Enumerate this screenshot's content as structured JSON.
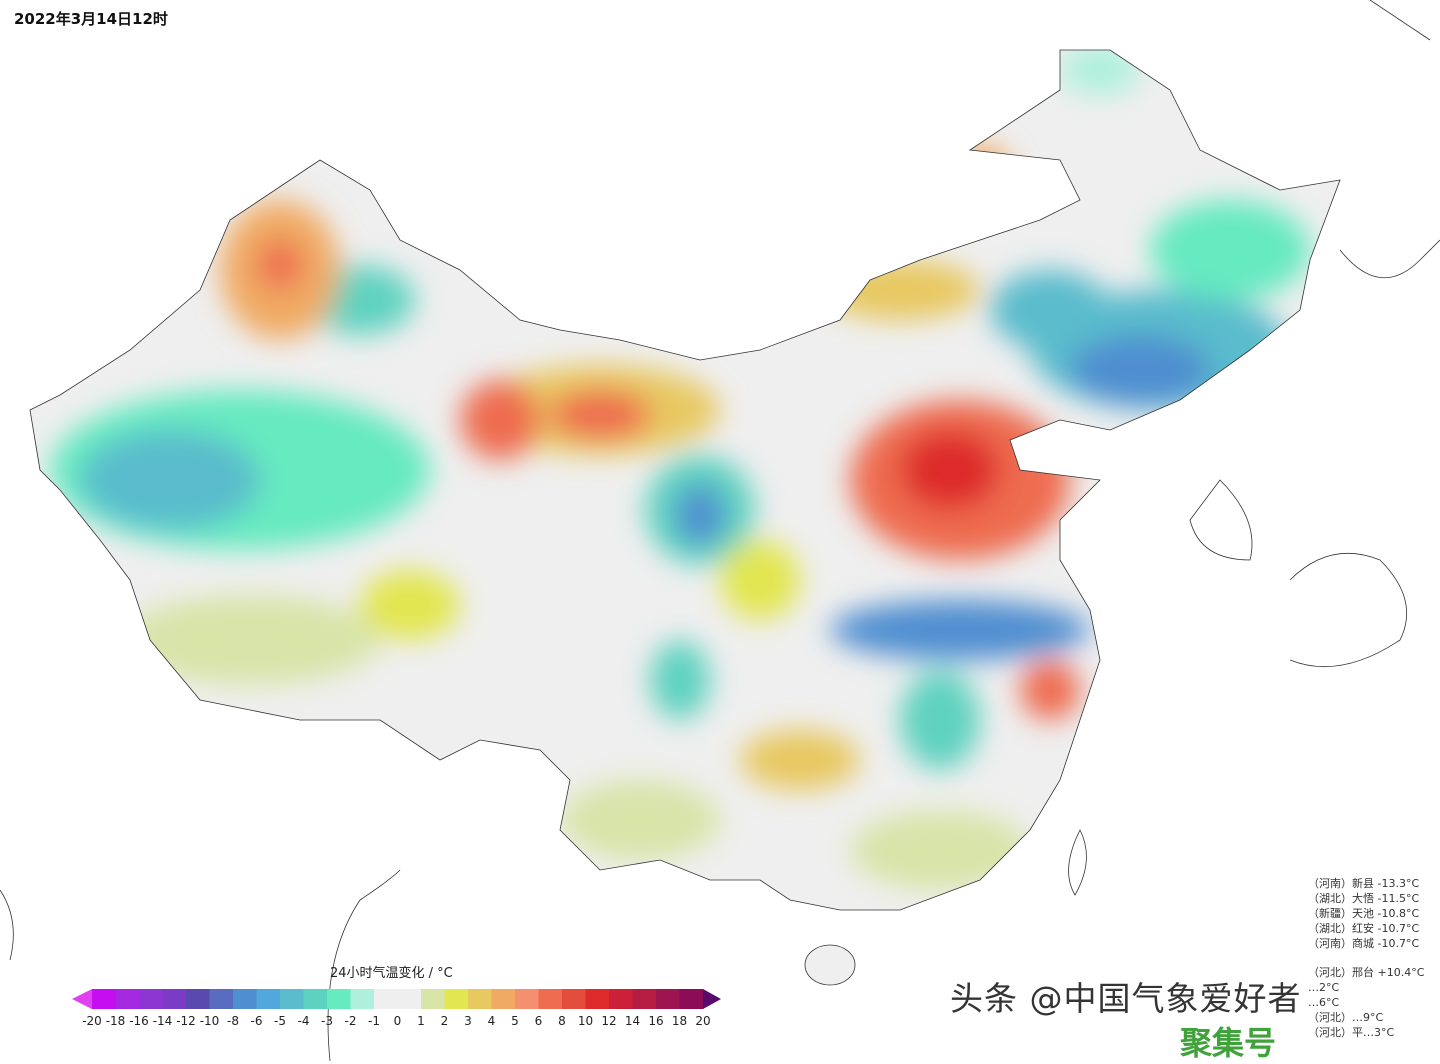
{
  "title": "2022年3月14日12时",
  "legend": {
    "title": "24小时气温变化 / °C",
    "ticks": [
      "-20",
      "-18",
      "-16",
      "-14",
      "-12",
      "-10",
      "-8",
      "-6",
      "-5",
      "-4",
      "-3",
      "-2",
      "-1",
      "0",
      "1",
      "2",
      "3",
      "4",
      "5",
      "6",
      "8",
      "10",
      "12",
      "14",
      "16",
      "18",
      "20"
    ],
    "colors": [
      "#c40ef0",
      "#a628e0",
      "#8e36d2",
      "#7a3cc4",
      "#5a4aae",
      "#5a6cc0",
      "#4f8ed0",
      "#52a8dc",
      "#5abccc",
      "#5ed2c0",
      "#66eac0",
      "#aef0dc",
      "#efefef",
      "#efefef",
      "#d8e4a8",
      "#e2e650",
      "#e8c860",
      "#f0aa64",
      "#f49070",
      "#ee6c50",
      "#e44c3c",
      "#de2a2a",
      "#cc2038",
      "#b41c40",
      "#9c1450",
      "#8c0c58"
    ],
    "under_color": "#e040f0",
    "over_color": "#5a0a6a"
  },
  "stations_min": [
    "（河南）新县  -13.3°C",
    "（湖北）大悟  -11.5°C",
    "（新疆）天池  -10.8°C",
    "（湖北）红安  -10.7°C",
    "（河南）商城  -10.7°C"
  ],
  "stations_max": [
    "（河北）邢台  +10.4°C",
    "…2°C",
    "…6°C",
    "（河北）…9°C",
    "（河北）平…3°C"
  ],
  "watermark": "头条 @中国气象爱好者",
  "watermark2": "聚集号"
}
